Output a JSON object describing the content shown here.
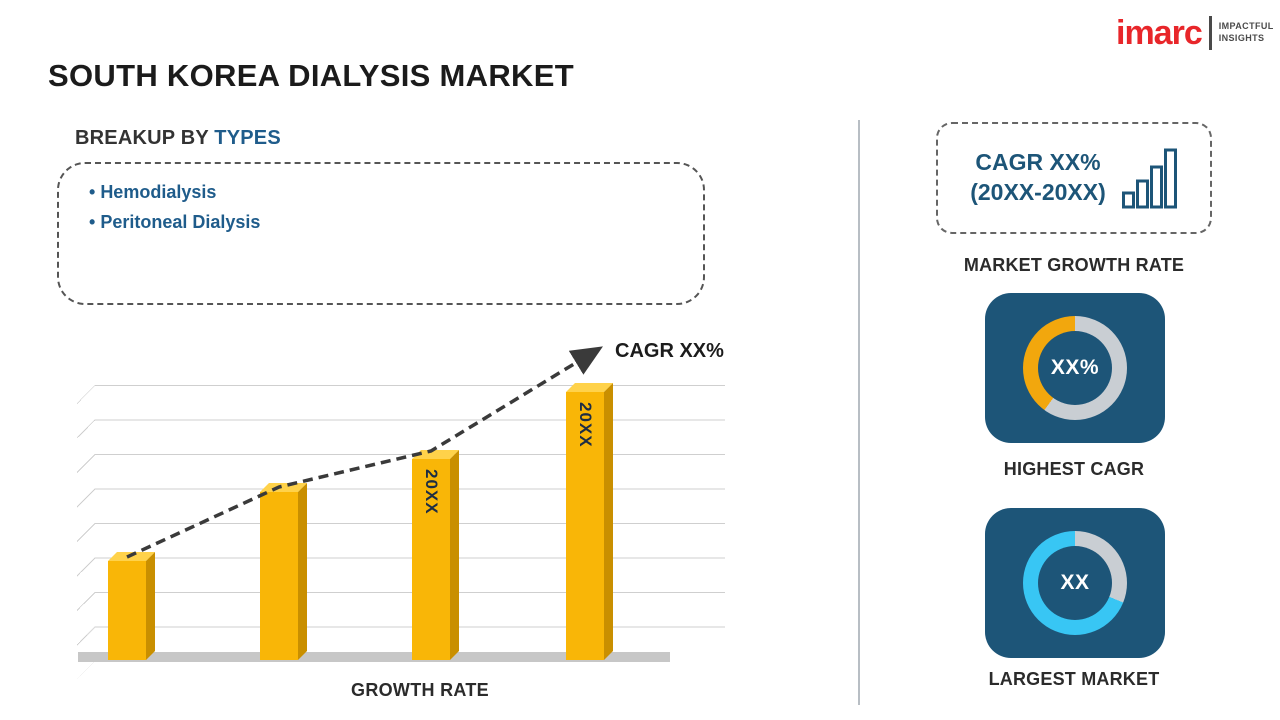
{
  "title": "SOUTH KOREA DIALYSIS MARKET",
  "logo": {
    "brand": "imarc",
    "tagline_line1": "IMPACTFUL",
    "tagline_line2": "INSIGHTS"
  },
  "breakup": {
    "heading_prefix": "BREAKUP BY ",
    "heading_highlight": "TYPES",
    "items": [
      "Hemodialysis",
      "Peritoneal Dialysis"
    ]
  },
  "chart_data": {
    "type": "bar",
    "title": "",
    "xlabel": "GROWTH RATE",
    "ylabel": "",
    "categories": [
      "",
      "",
      "20XX",
      "20XX"
    ],
    "bar_labels": [
      "",
      "",
      "20XX",
      "20XX"
    ],
    "values_pct": [
      36,
      61,
      73,
      97
    ],
    "ylim": [
      0,
      100
    ],
    "grid": true,
    "bar_color": "#f9b607",
    "trend": "dashed-arrow-ascending",
    "trend_label": "CAGR XX%"
  },
  "sidebar": {
    "growth_box": {
      "line1": "CAGR XX%",
      "line2": "(20XX-20XX)",
      "caption": "MARKET GROWTH RATE"
    },
    "highest_cagr": {
      "value": "XX%",
      "label": "HIGHEST CAGR",
      "segment_pct": 40,
      "accent": "#f2a70d"
    },
    "largest_market": {
      "value": "XX",
      "label": "LARGEST MARKET",
      "segment_pct": 69,
      "accent": "#38c6f4"
    }
  },
  "colors": {
    "navy": "#1d5578",
    "blue_text": "#1f5c8b",
    "bar_yellow": "#f9b607",
    "bar_side": "#c98f00",
    "orange_accent": "#f2a70d",
    "cyan_accent": "#38c6f4",
    "ring_gray": "#c9ced3",
    "logo_red": "#e8262a"
  }
}
